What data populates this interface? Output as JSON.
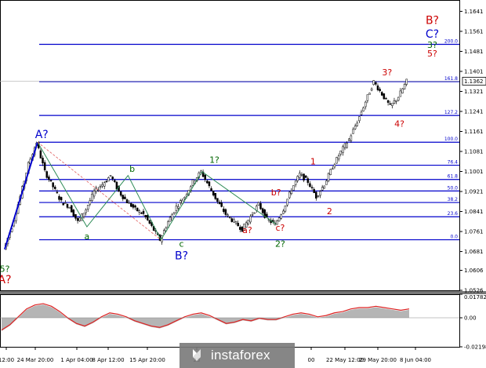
{
  "chart_data": [
    {
      "type": "candlestick",
      "title": "",
      "ylim": [
        1.0526,
        1.168
      ],
      "y_ticks": [
        "1.1641",
        "1.1561",
        "1.1481",
        "1.1401",
        "1.1321",
        "1.1241",
        "1.1161",
        "1.1081",
        "1.1001",
        "1.0921",
        "1.0841",
        "1.0761",
        "1.0681",
        "1.0606",
        "1.0526"
      ],
      "current_price": "1.1362",
      "x_ticks": [
        "12:00",
        "24 Mar 20:00",
        "1 Apr 04:00",
        "8 Apr 12:00",
        "15 Apr 20:00",
        "23",
        "00",
        "22 May 12:00",
        "29 May 20:00",
        "8 Jun 04:00"
      ],
      "fib_levels": [
        {
          "label": "0.0",
          "price": 1.0728
        },
        {
          "label": "23.6",
          "price": 1.082
        },
        {
          "label": "38.2",
          "price": 1.0877
        },
        {
          "label": "50.0",
          "price": 1.0923
        },
        {
          "label": "61.8",
          "price": 1.0969
        },
        {
          "label": "76.4",
          "price": 1.1026
        },
        {
          "label": "100.0",
          "price": 1.1118
        },
        {
          "label": "127.2",
          "price": 1.1225
        },
        {
          "label": "161.8",
          "price": 1.136
        },
        {
          "label": "200.0",
          "price": 1.1509
        }
      ],
      "price_path": [
        1.069,
        1.078,
        1.09,
        1.103,
        1.1118,
        1.1,
        1.094,
        1.088,
        1.086,
        1.08,
        1.085,
        1.092,
        1.095,
        1.0985,
        1.092,
        1.088,
        1.085,
        1.083,
        1.078,
        1.0728,
        1.08,
        1.086,
        1.09,
        1.096,
        1.1,
        1.094,
        1.088,
        1.083,
        1.08,
        1.077,
        1.082,
        1.087,
        1.081,
        1.079,
        1.085,
        1.093,
        1.099,
        1.096,
        1.09,
        1.095,
        1.102,
        1.108,
        1.113,
        1.12,
        1.128,
        1.136,
        1.131,
        1.126,
        1.13,
        1.1362
      ]
    },
    {
      "type": "area",
      "title": "",
      "ylim": [
        -0.02198,
        0.01782
      ],
      "y_ticks": [
        "0.01782",
        "0.00",
        "-0.02198"
      ],
      "series_values": [
        -0.01,
        -0.006,
        0.0,
        0.006,
        0.009,
        0.01,
        0.008,
        0.004,
        -0.001,
        -0.005,
        -0.007,
        -0.004,
        0.0,
        0.003,
        0.002,
        0.0,
        -0.003,
        -0.005,
        -0.007,
        -0.008,
        -0.006,
        -0.003,
        0.0,
        0.002,
        0.003,
        0.001,
        -0.002,
        -0.005,
        -0.004,
        -0.002,
        -0.003,
        -0.001,
        -0.002,
        -0.002,
        0.0,
        0.002,
        0.003,
        0.002,
        0.0,
        0.001,
        0.003,
        0.004,
        0.006,
        0.007,
        0.007,
        0.008,
        0.007,
        0.006,
        0.005,
        0.006
      ]
    }
  ],
  "wave_labels": [
    {
      "text": "A?",
      "color": "#0000cc",
      "price": 1.1135,
      "time": 4.5
    },
    {
      "text": "a",
      "color": "#006600",
      "price": 1.073,
      "time": 10.0
    },
    {
      "text": "b",
      "color": "#006600",
      "price": 1.1,
      "time": 15.5
    },
    {
      "text": "c",
      "color": "#006600",
      "price": 1.07,
      "time": 21.5
    },
    {
      "text": "B?",
      "color": "#0000cc",
      "price": 1.065,
      "time": 21.5
    },
    {
      "text": "1?",
      "color": "#006600",
      "price": 1.1035,
      "time": 25.5
    },
    {
      "text": "a?",
      "color": "#cc0000",
      "price": 1.0755,
      "time": 29.5
    },
    {
      "text": "b?",
      "color": "#cc0000",
      "price": 1.0905,
      "time": 33.0
    },
    {
      "text": "c?",
      "color": "#cc0000",
      "price": 1.0765,
      "time": 33.5
    },
    {
      "text": "2?",
      "color": "#006600",
      "price": 1.07,
      "time": 33.5
    },
    {
      "text": "1",
      "color": "#cc0000",
      "price": 1.103,
      "time": 37.5
    },
    {
      "text": "2",
      "color": "#cc0000",
      "price": 1.083,
      "time": 39.5
    },
    {
      "text": "3?",
      "color": "#cc0000",
      "price": 1.1385,
      "time": 46.5
    },
    {
      "text": "4?",
      "color": "#cc0000",
      "price": 1.118,
      "time": 48.0
    },
    {
      "text": "5?",
      "color": "#cc0000",
      "price": 1.146,
      "time": 52.0
    },
    {
      "text": "3?",
      "color": "#006600",
      "price": 1.1495,
      "time": 52.0
    },
    {
      "text": "C?",
      "color": "#0000cc",
      "price": 1.1535,
      "time": 52.0
    },
    {
      "text": "B?",
      "color": "#cc0000",
      "price": 1.159,
      "time": 52.0
    },
    {
      "text": "5?",
      "color": "#006600",
      "price": 1.06,
      "time": 0.0
    },
    {
      "text": "A?",
      "color": "#cc0000",
      "price": 1.0555,
      "time": 0.0
    }
  ],
  "watermark": {
    "brand": "instaforex"
  }
}
